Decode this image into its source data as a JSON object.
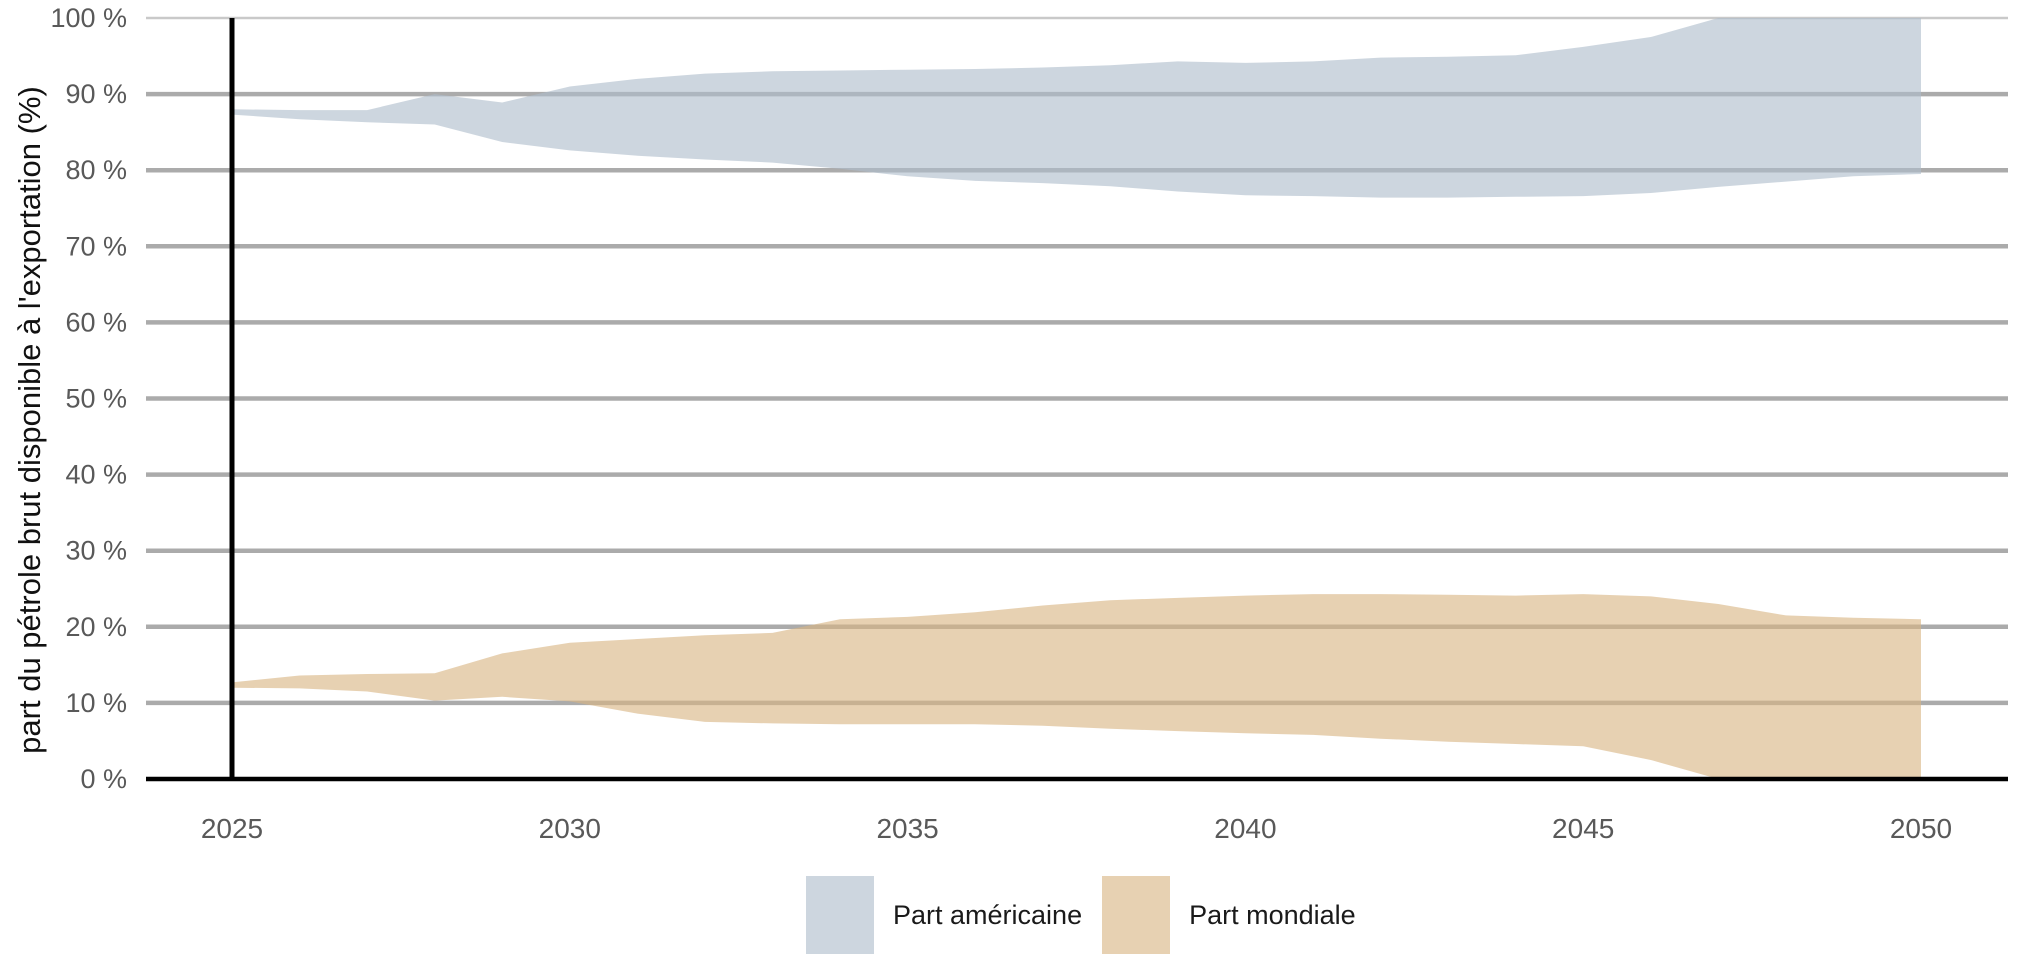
{
  "chart_data": {
    "type": "area",
    "subtype": "range-band",
    "title": "",
    "xlabel": "",
    "ylabel": "part du pétrole brut disponible à l'exportation (%)",
    "xlim": [
      2025,
      2050
    ],
    "ylim": [
      0,
      100
    ],
    "x_ticks": [
      2025,
      2030,
      2035,
      2040,
      2045,
      2050
    ],
    "y_ticks": [
      0,
      10,
      20,
      30,
      40,
      50,
      60,
      70,
      80,
      90,
      100
    ],
    "y_tick_labels": [
      "0 %",
      "10 %",
      "20 %",
      "30 %",
      "40 %",
      "50 %",
      "60 %",
      "70 %",
      "80 %",
      "90 %",
      "100 %"
    ],
    "grid": "horizontal",
    "reference_line_x": 2025,
    "legend_position": "bottom",
    "x": [
      2025,
      2026,
      2027,
      2028,
      2029,
      2030,
      2031,
      2032,
      2033,
      2034,
      2035,
      2036,
      2037,
      2038,
      2039,
      2040,
      2041,
      2042,
      2043,
      2044,
      2045,
      2046,
      2047,
      2048,
      2049,
      2050
    ],
    "series": [
      {
        "id": "part-americaine",
        "name": "Part américaine",
        "color": "#aebdcb",
        "lower": [
          87.3,
          86.7,
          86.3,
          86.0,
          83.7,
          82.6,
          81.9,
          81.4,
          81.0,
          80.2,
          79.2,
          78.6,
          78.3,
          77.9,
          77.2,
          76.7,
          76.6,
          76.4,
          76.4,
          76.5,
          76.6,
          77.0,
          77.8,
          78.5,
          79.2,
          79.5
        ],
        "upper": [
          88.0,
          87.9,
          87.9,
          90.0,
          88.9,
          91.0,
          92.0,
          92.7,
          93.0,
          93.1,
          93.2,
          93.3,
          93.5,
          93.8,
          94.3,
          94.1,
          94.3,
          94.8,
          94.9,
          95.1,
          96.2,
          97.5,
          100,
          100,
          100,
          100
        ]
      },
      {
        "id": "part-mondiale",
        "name": "Part mondiale",
        "color": "#d9b583",
        "lower": [
          12.0,
          11.9,
          11.5,
          10.3,
          10.8,
          10.2,
          8.6,
          7.5,
          7.3,
          7.2,
          7.2,
          7.2,
          7.0,
          6.6,
          6.3,
          6.0,
          5.8,
          5.3,
          4.9,
          4.6,
          4.3,
          2.5,
          0,
          0,
          0,
          0
        ],
        "upper": [
          12.7,
          13.6,
          13.8,
          13.9,
          16.5,
          17.9,
          18.4,
          18.9,
          19.2,
          21.0,
          21.3,
          21.9,
          22.8,
          23.5,
          23.8,
          24.1,
          24.3,
          24.3,
          24.2,
          24.1,
          24.3,
          24.0,
          23.0,
          21.5,
          21.2,
          21.0
        ]
      }
    ]
  },
  "colors": {
    "background": "#ffffff",
    "gridline": "#ababab",
    "gridline_top": "#c9c9c9",
    "axis": "#000000",
    "reference_line": "#000000",
    "tick_label": "#595959",
    "text": "#1a1a1a",
    "band_opacity": 0.62
  }
}
